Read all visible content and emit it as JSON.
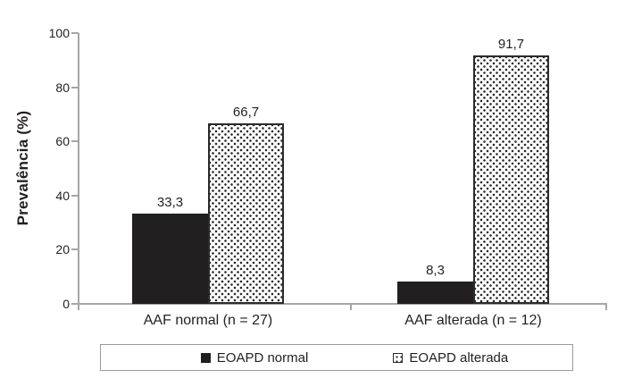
{
  "figure": {
    "ylabel": "Prevalência (%)",
    "ytick_labels": [
      "100",
      "80",
      "60",
      "40",
      "20",
      "0"
    ],
    "categories": [
      "AAF normal (n = 27)",
      "AAF alterada (n = 12)"
    ],
    "value_labels": {
      "g1_solid": "33,3",
      "g1_dotted": "66,7",
      "g2_solid": "8,3",
      "g2_dotted": "91,7"
    },
    "legend": {
      "item1": "EOAPD normal",
      "item2": "EOAPD alterada"
    }
  },
  "colors": {
    "solid_bar": "#221f20",
    "dotted_bar_dots": "#2b2b2b",
    "dotted_bar_background": "#ffffff",
    "axis_line": "#a6a6a6",
    "legend_border": "#999999",
    "text": "#221f20",
    "background": "#ffffff"
  },
  "chart_data": {
    "type": "bar",
    "title": "",
    "xlabel": "",
    "ylabel": "Prevalência (%)",
    "categories": [
      "AAF normal (n = 27)",
      "AAF alterada (n = 12)"
    ],
    "series": [
      {
        "name": "EOAPD normal",
        "values": [
          33.3,
          8.3
        ],
        "fill": "solid-black"
      },
      {
        "name": "EOAPD alterada",
        "values": [
          66.7,
          91.7
        ],
        "fill": "white-with-black-dots"
      }
    ],
    "value_labels": [
      [
        "33,3",
        "8,3"
      ],
      [
        "66,7",
        "91,7"
      ]
    ],
    "ylim": [
      0,
      100
    ],
    "yticks": [
      0,
      20,
      40,
      60,
      80,
      100
    ],
    "grid": false,
    "legend_position": "bottom-outside-boxed",
    "decimal_separator": ","
  }
}
